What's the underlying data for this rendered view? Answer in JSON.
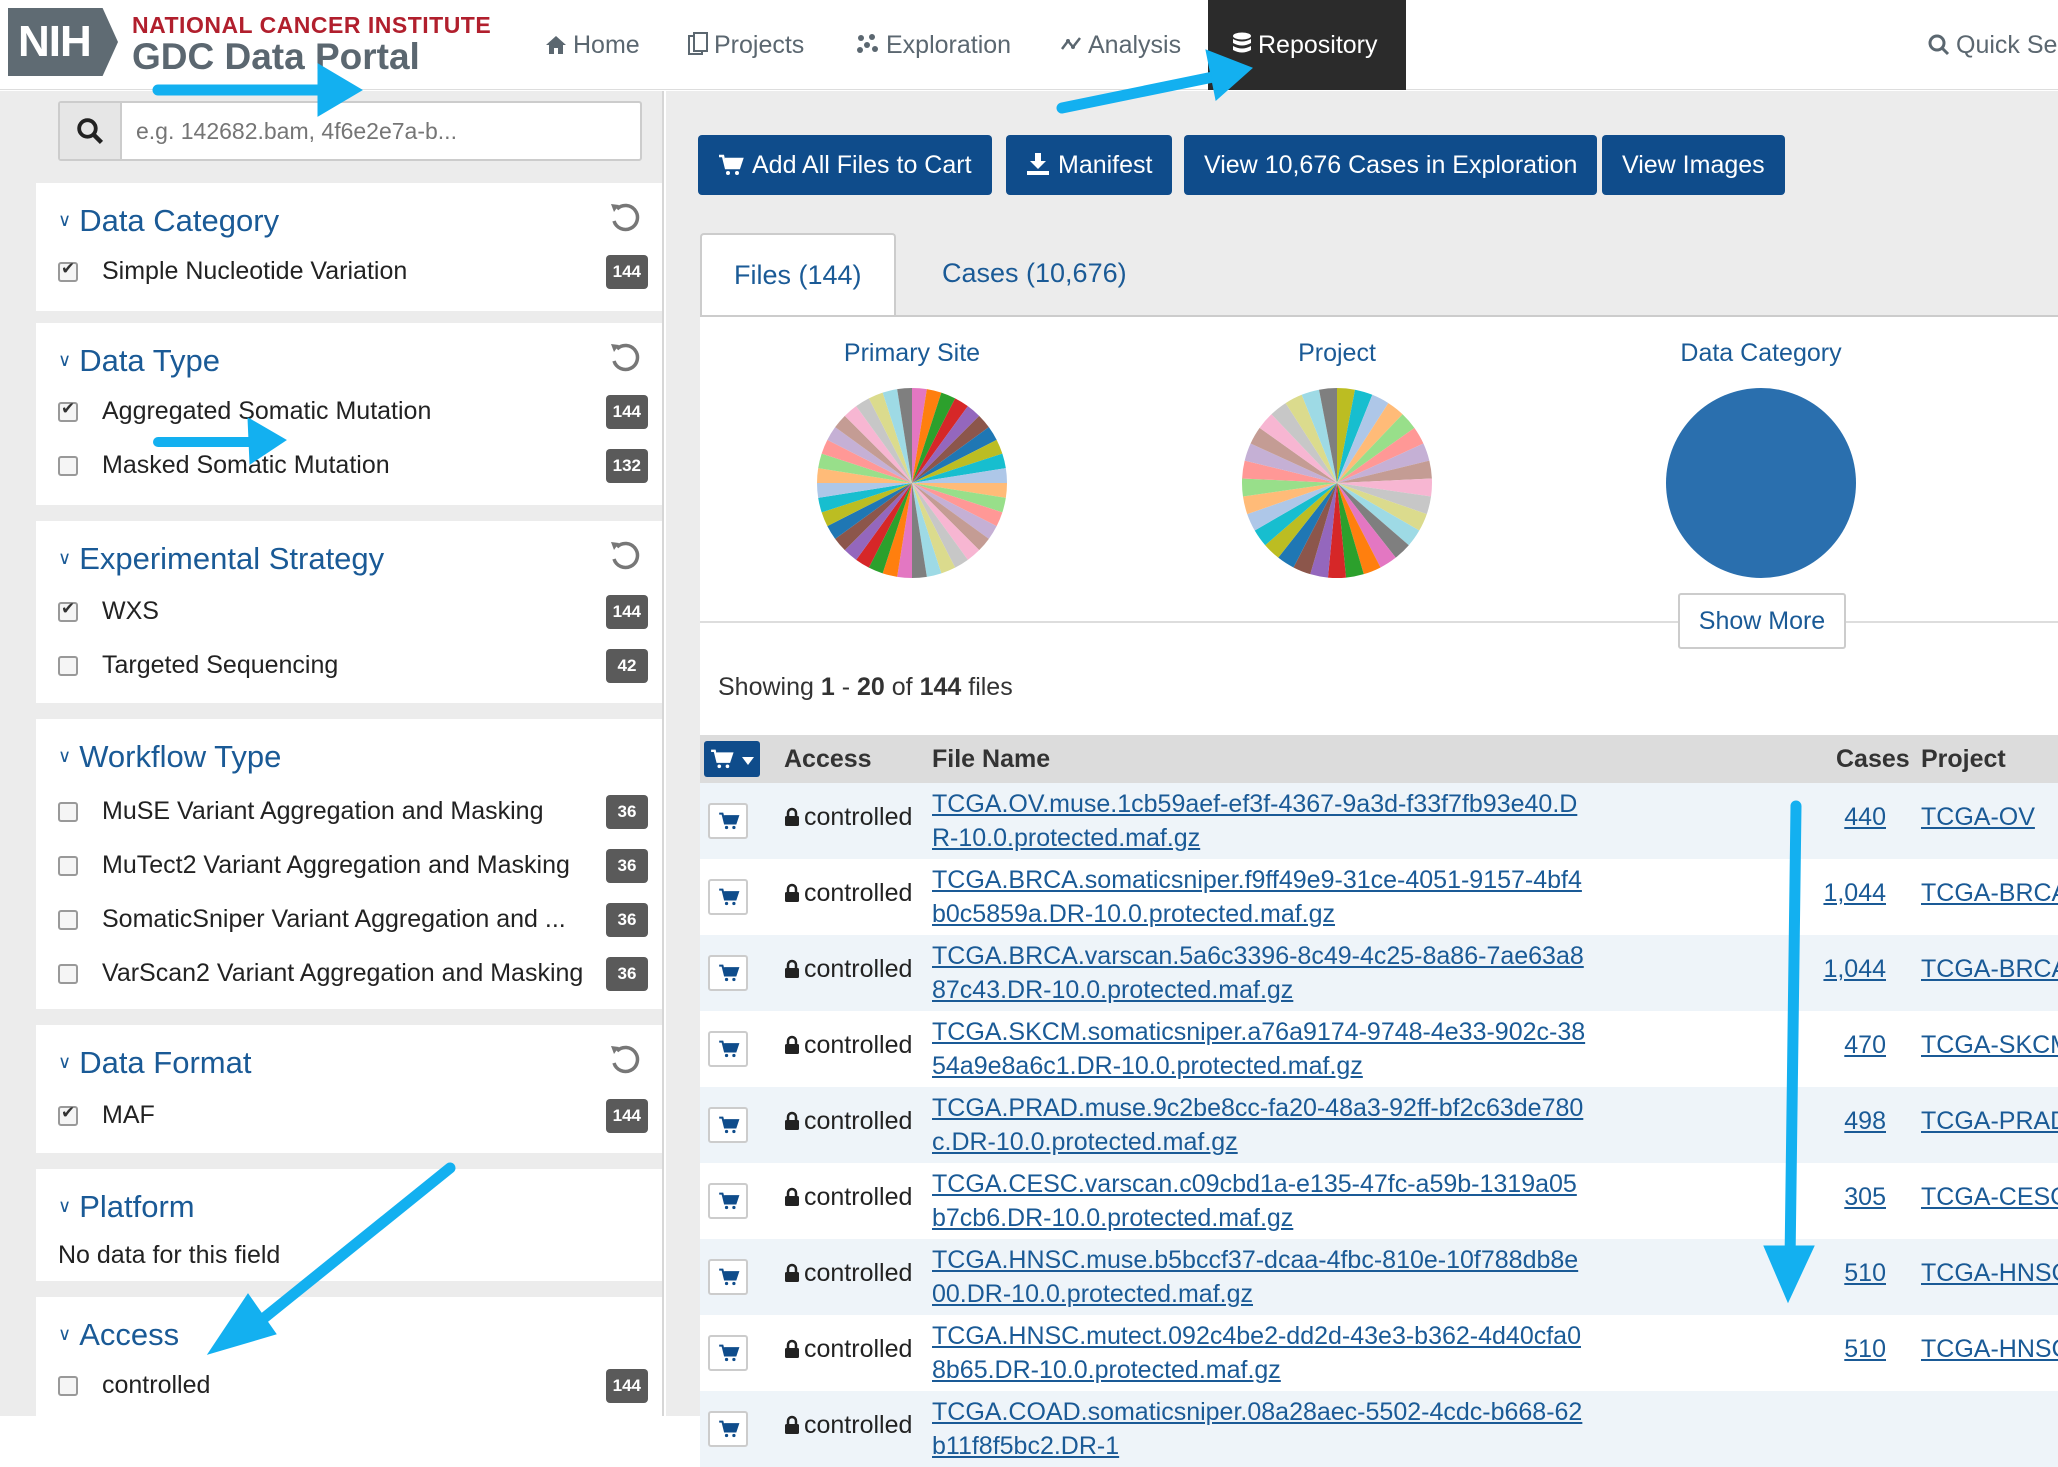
{
  "header": {
    "logo": "NIH",
    "brand_top": "NATIONAL CANCER INSTITUTE",
    "brand_bottom": "GDC Data Portal",
    "nav": [
      {
        "label": "Home",
        "icon": "home-icon"
      },
      {
        "label": "Projects",
        "icon": "projects-icon"
      },
      {
        "label": "Exploration",
        "icon": "exploration-icon"
      },
      {
        "label": "Analysis",
        "icon": "analysis-icon"
      },
      {
        "label": "Repository",
        "icon": "database-icon",
        "active": true
      }
    ],
    "quick_search": "Quick Se"
  },
  "sidebar": {
    "search_placeholder": "e.g. 142682.bam, 4f6e2e7a-b...",
    "facets": {
      "data_category": {
        "title": "Data Category",
        "items": [
          {
            "label": "Simple Nucleotide Variation",
            "count": "144",
            "checked": true
          }
        ]
      },
      "data_type": {
        "title": "Data Type",
        "items": [
          {
            "label": "Aggregated Somatic Mutation",
            "count": "144",
            "checked": true
          },
          {
            "label": "Masked Somatic Mutation",
            "count": "132",
            "checked": false
          }
        ]
      },
      "experimental_strategy": {
        "title": "Experimental Strategy",
        "items": [
          {
            "label": "WXS",
            "count": "144",
            "checked": true
          },
          {
            "label": "Targeted Sequencing",
            "count": "42",
            "checked": false
          }
        ]
      },
      "workflow_type": {
        "title": "Workflow Type",
        "items": [
          {
            "label": "MuSE Variant Aggregation and Masking",
            "count": "36",
            "checked": false
          },
          {
            "label": "MuTect2 Variant Aggregation and Masking",
            "count": "36",
            "checked": false
          },
          {
            "label": "SomaticSniper Variant Aggregation and ...",
            "count": "36",
            "checked": false
          },
          {
            "label": "VarScan2 Variant Aggregation and Masking",
            "count": "36",
            "checked": false
          }
        ]
      },
      "data_format": {
        "title": "Data Format",
        "items": [
          {
            "label": "MAF",
            "count": "144",
            "checked": true
          }
        ]
      },
      "platform": {
        "title": "Platform",
        "empty_text": "No data for this field"
      },
      "access": {
        "title": "Access",
        "items": [
          {
            "label": "controlled",
            "count": "144",
            "checked": false
          }
        ]
      }
    }
  },
  "main": {
    "actions": {
      "add_all": "Add All Files to Cart",
      "manifest": "Manifest",
      "view_cases": "View 10,676 Cases in Exploration",
      "view_images": "View Images"
    },
    "tabs": {
      "files": "Files (144)",
      "cases": "Cases (10,676)"
    },
    "charts": {
      "primary_site": "Primary Site",
      "project": "Project",
      "data_category": "Data Category",
      "show_more": "Show More"
    },
    "showing": {
      "prefix": "Showing",
      "from": "1",
      "dash": "-",
      "to": "20",
      "of": "of",
      "total": "144",
      "suffix": "files"
    },
    "table": {
      "headers": {
        "access": "Access",
        "file_name": "File Name",
        "cases": "Cases",
        "project": "Project"
      },
      "rows": [
        {
          "access": "controlled",
          "file_name": "TCGA.OV.muse.1cb59aef-ef3f-4367-9a3d-f33f7fb93e40.DR-10.0.protected.maf.gz",
          "cases": "440",
          "project": "TCGA-OV"
        },
        {
          "access": "controlled",
          "file_name": "TCGA.BRCA.somaticsniper.f9ff49e9-31ce-4051-9157-4bf4b0c5859a.DR-10.0.protected.maf.gz",
          "cases": "1,044",
          "project": "TCGA-BRCA"
        },
        {
          "access": "controlled",
          "file_name": "TCGA.BRCA.varscan.5a6c3396-8c49-4c25-8a86-7ae63a887c43.DR-10.0.protected.maf.gz",
          "cases": "1,044",
          "project": "TCGA-BRCA"
        },
        {
          "access": "controlled",
          "file_name": "TCGA.SKCM.somaticsniper.a76a9174-9748-4e33-902c-3854a9e8a6c1.DR-10.0.protected.maf.gz",
          "cases": "470",
          "project": "TCGA-SKCM"
        },
        {
          "access": "controlled",
          "file_name": "TCGA.PRAD.muse.9c2be8cc-fa20-48a3-92ff-bf2c63de780c.DR-10.0.protected.maf.gz",
          "cases": "498",
          "project": "TCGA-PRAD"
        },
        {
          "access": "controlled",
          "file_name": "TCGA.CESC.varscan.c09cbd1a-e135-47fc-a59b-1319a05b7cb6.DR-10.0.protected.maf.gz",
          "cases": "305",
          "project": "TCGA-CESC"
        },
        {
          "access": "controlled",
          "file_name": "TCGA.HNSC.muse.b5bccf37-dcaa-4fbc-810e-10f788db8e00.DR-10.0.protected.maf.gz",
          "cases": "510",
          "project": "TCGA-HNSC"
        },
        {
          "access": "controlled",
          "file_name": "TCGA.HNSC.mutect.092c4be2-dd2d-43e3-b362-4d40cfa08b65.DR-10.0.protected.maf.gz",
          "cases": "510",
          "project": "TCGA-HNSC"
        },
        {
          "access": "controlled",
          "file_name": "TCGA.COAD.somaticsniper.08a28aec-5502-4cdc-b668-62b11f8f5bc2.DR-1",
          "cases": "",
          "project": ""
        }
      ]
    }
  },
  "colors": {
    "brand_red": "#b11f2d",
    "link_blue": "#1a5a96",
    "button_blue": "#0f4c8b",
    "nav_active_bg": "#2b2b2b",
    "annotation_arrow": "#13b0f0",
    "data_category_pie": "#2a6fae"
  }
}
